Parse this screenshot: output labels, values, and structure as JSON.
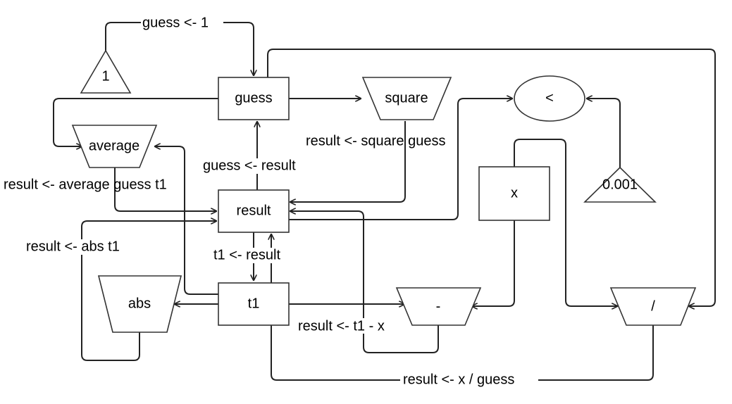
{
  "nodes": {
    "guess": "guess",
    "result": "result",
    "t1": "t1",
    "x": "x",
    "square": "square",
    "average": "average",
    "abs": "abs",
    "minus": "-",
    "divide": "/",
    "less_than": "<",
    "const_one": "1",
    "const_tol": "0.001"
  },
  "edge_labels": {
    "init_guess": "guess <- 1",
    "square_guess": "result  <- square guess",
    "update_guess": "guess <- result",
    "average_guess": "result <- average guess t1",
    "abs_t1": "result <- abs t1",
    "store_t1": "t1 <- result",
    "subtract": "result <- t1 - x",
    "divide_x": "result <- x / guess"
  }
}
